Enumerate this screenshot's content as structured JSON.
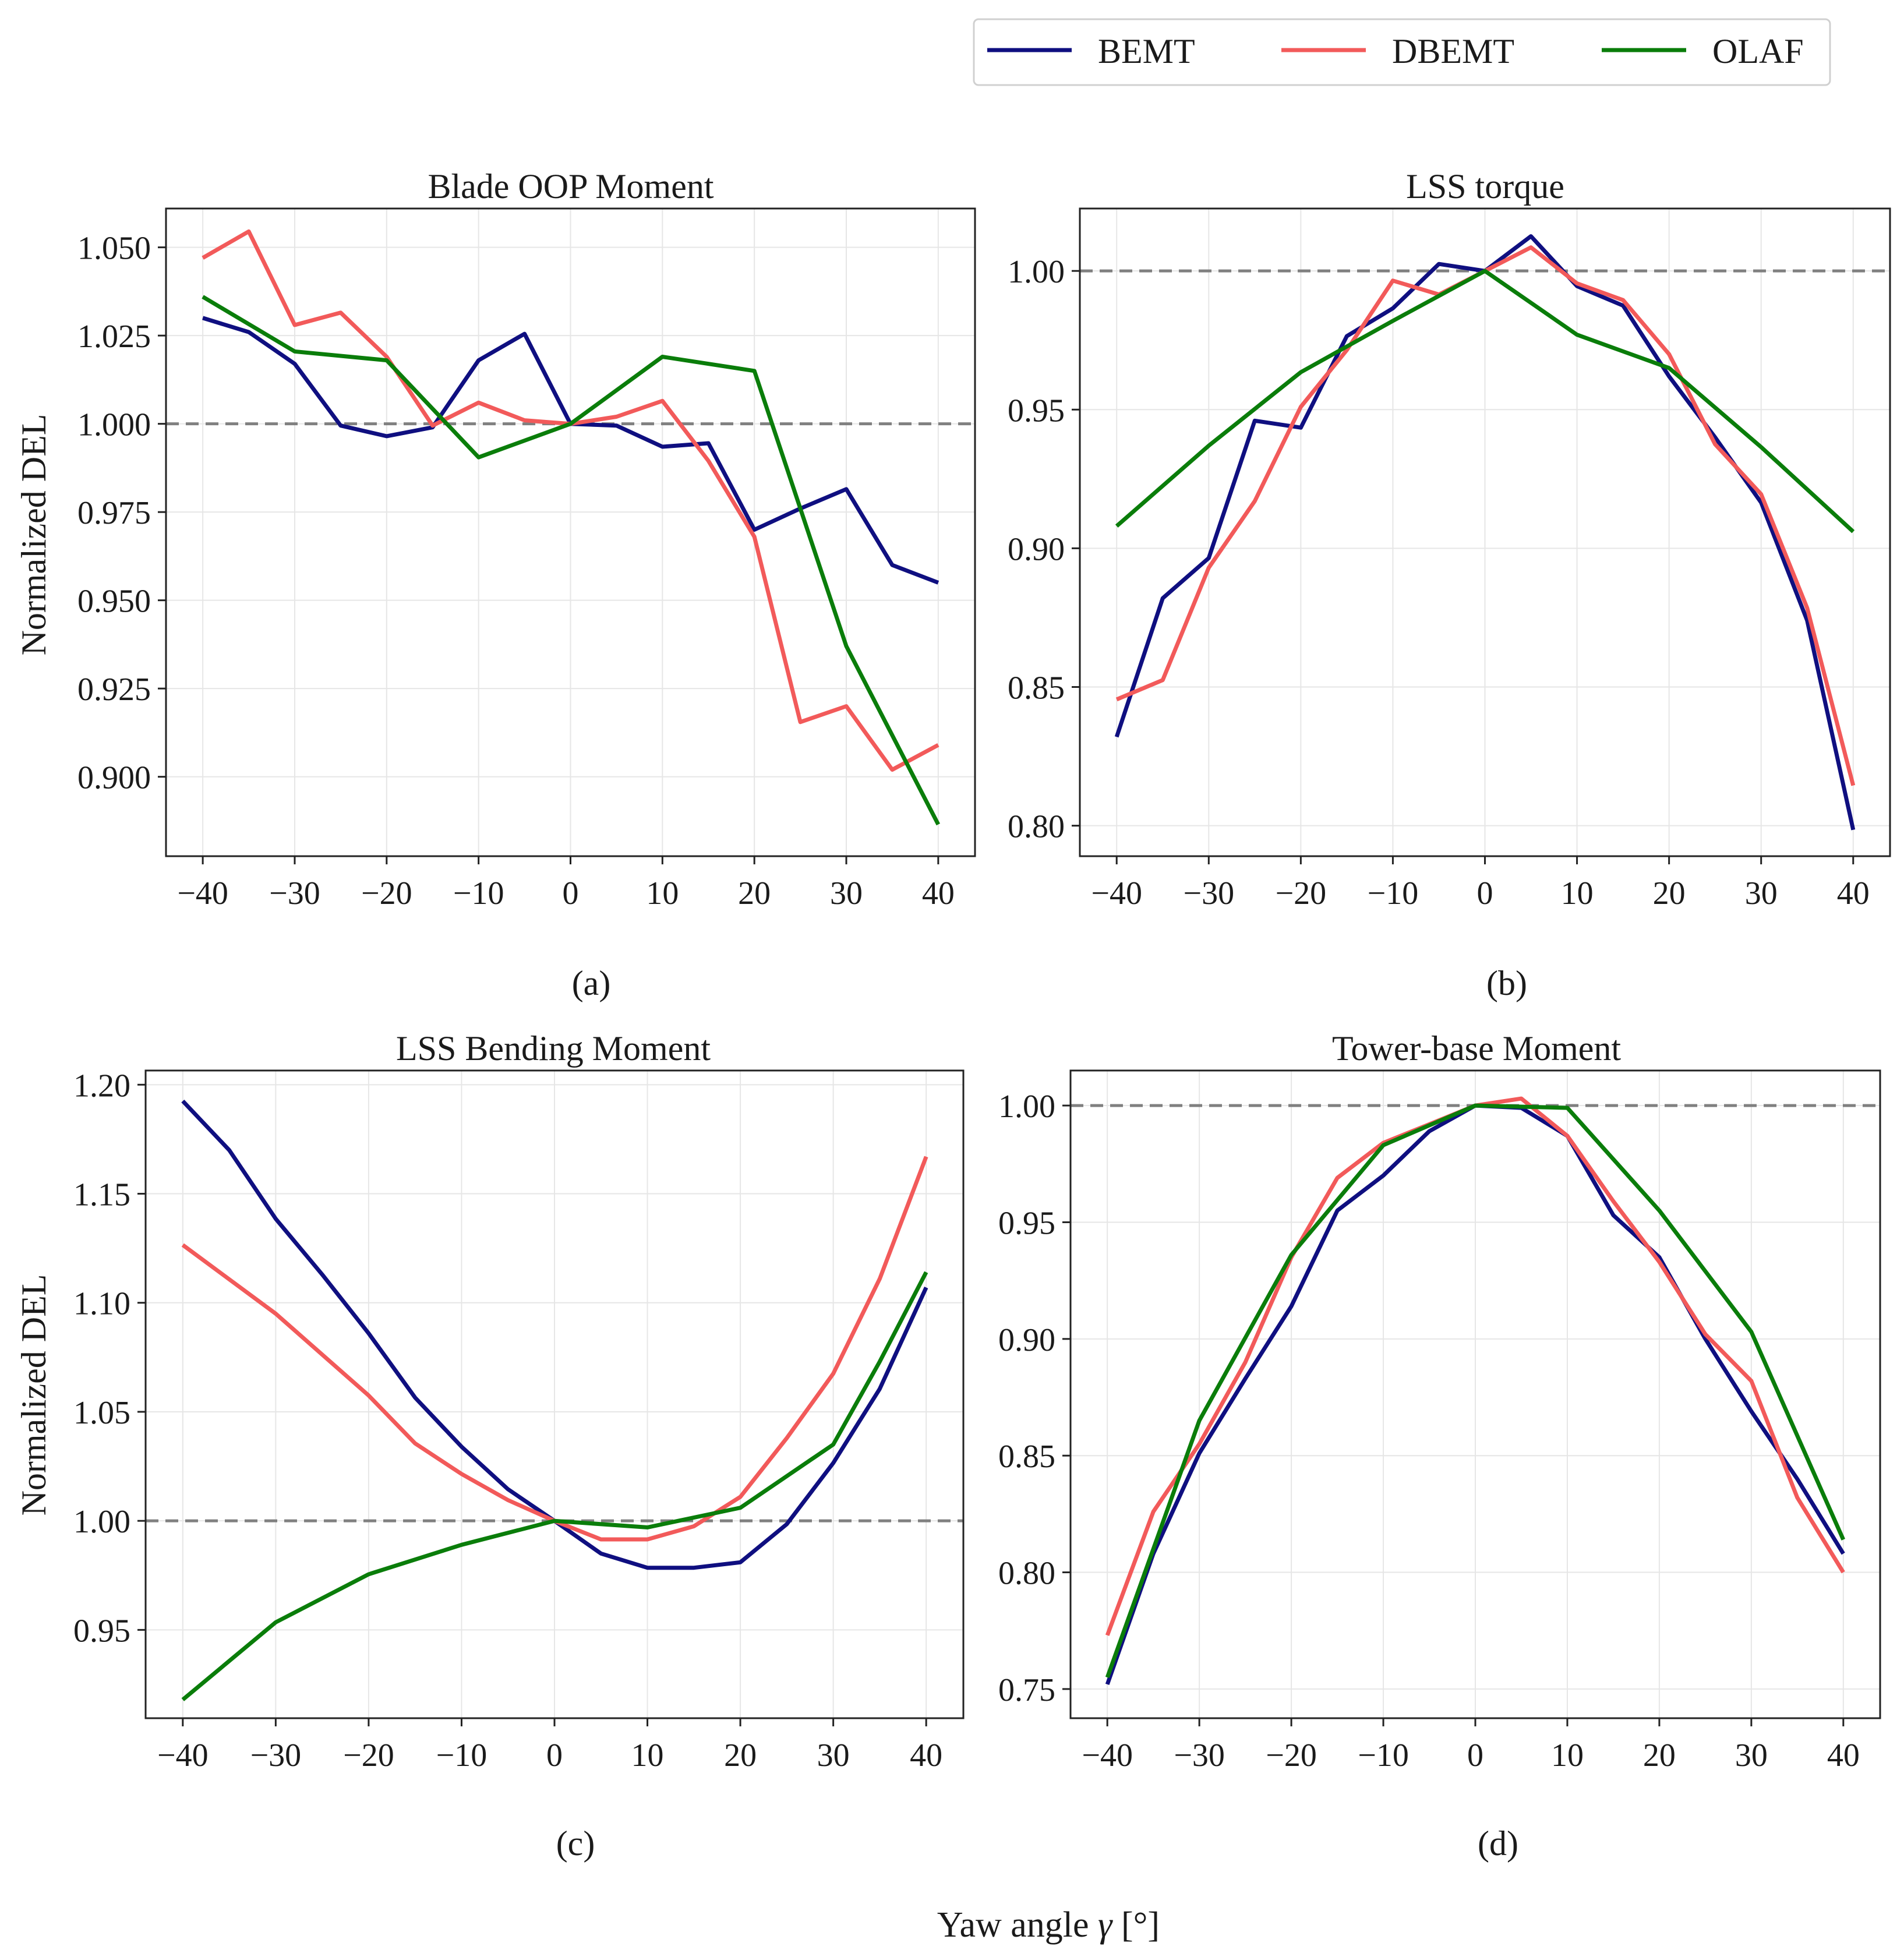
{
  "figure": {
    "xlabel_prefix": "Yaw angle ",
    "xlabel_symbol": "γ",
    "xlabel_suffix": " [°]"
  },
  "legend": {
    "items": [
      {
        "label": "BEMT",
        "color": "#0f0f80"
      },
      {
        "label": "DBEMT",
        "color": "#f25a5a"
      },
      {
        "label": "OLAF",
        "color": "#0a7d0a"
      }
    ]
  },
  "chart_data": [
    {
      "type": "line",
      "title": "Blade OOP Moment",
      "caption": "(a)",
      "xlabel": "",
      "ylabel": "Normalized DEL",
      "xlim": [
        -44,
        44
      ],
      "ylim": [
        0.8775,
        1.061
      ],
      "xticks": [
        -40,
        -30,
        -20,
        -10,
        0,
        10,
        20,
        30,
        40
      ],
      "xtick_labels": [
        "−40",
        "−30",
        "−20",
        "−10",
        "0",
        "10",
        "20",
        "30",
        "40"
      ],
      "yticks": [
        0.9,
        0.925,
        0.95,
        0.975,
        1.0,
        1.025,
        1.05
      ],
      "ytick_labels": [
        "0.900",
        "0.925",
        "0.950",
        "0.975",
        "1.000",
        "1.025",
        "1.050"
      ],
      "reference_line": 1.0,
      "series": [
        {
          "name": "BEMT",
          "x": [
            -40,
            -35,
            -30,
            -25,
            -20,
            -15,
            -10,
            -5,
            0,
            5,
            10,
            15,
            20,
            25,
            30,
            35,
            40
          ],
          "values": [
            1.03,
            1.026,
            1.017,
            0.9995,
            0.9965,
            0.999,
            1.018,
            1.0255,
            1.0,
            0.9995,
            0.9935,
            0.9945,
            0.97,
            0.976,
            0.9815,
            0.96,
            0.955
          ]
        },
        {
          "name": "DBEMT",
          "x": [
            -40,
            -35,
            -30,
            -25,
            -20,
            -15,
            -10,
            -5,
            0,
            5,
            10,
            15,
            20,
            25,
            30,
            35,
            40
          ],
          "values": [
            1.047,
            1.0545,
            1.028,
            1.0315,
            1.019,
            0.9995,
            1.006,
            1.001,
            1.0,
            1.002,
            1.0065,
            0.9895,
            0.968,
            0.9155,
            0.92,
            0.902,
            0.909
          ]
        },
        {
          "name": "OLAF",
          "x": [
            -40,
            -30,
            -20,
            -10,
            0,
            10,
            20,
            30,
            40
          ],
          "values": [
            1.036,
            1.0205,
            1.018,
            0.9905,
            1.0,
            1.019,
            1.015,
            0.937,
            0.8865
          ]
        }
      ]
    },
    {
      "type": "line",
      "title": "LSS torque",
      "caption": "(b)",
      "xlabel": "",
      "ylabel": "",
      "xlim": [
        -44,
        44
      ],
      "ylim": [
        0.789,
        1.0225
      ],
      "xticks": [
        -40,
        -30,
        -20,
        -10,
        0,
        10,
        20,
        30,
        40
      ],
      "xtick_labels": [
        "−40",
        "−30",
        "−20",
        "−10",
        "0",
        "10",
        "20",
        "30",
        "40"
      ],
      "yticks": [
        0.8,
        0.85,
        0.9,
        0.95,
        1.0
      ],
      "ytick_labels": [
        "0.80",
        "0.85",
        "0.90",
        "0.95",
        "1.00"
      ],
      "reference_line": 1.0,
      "series": [
        {
          "name": "BEMT",
          "x": [
            -40,
            -35,
            -30,
            -25,
            -20,
            -15,
            -10,
            -5,
            0,
            5,
            10,
            15,
            20,
            25,
            30,
            35,
            40
          ],
          "values": [
            0.832,
            0.882,
            0.8965,
            0.946,
            0.9435,
            0.9765,
            0.9865,
            1.0025,
            1.0,
            1.0125,
            0.9945,
            0.9875,
            0.962,
            0.94,
            0.9165,
            0.874,
            0.7985
          ]
        },
        {
          "name": "DBEMT",
          "x": [
            -40,
            -35,
            -30,
            -25,
            -20,
            -15,
            -10,
            -5,
            0,
            5,
            10,
            15,
            20,
            25,
            30,
            35,
            40
          ],
          "values": [
            0.8455,
            0.8525,
            0.893,
            0.917,
            0.951,
            0.9715,
            0.9965,
            0.9915,
            1.0,
            1.0085,
            0.9955,
            0.9895,
            0.97,
            0.9375,
            0.9195,
            0.8785,
            0.8145
          ]
        },
        {
          "name": "OLAF",
          "x": [
            -40,
            -30,
            -20,
            -10,
            0,
            10,
            20,
            30,
            40
          ],
          "values": [
            0.908,
            0.937,
            0.9635,
            0.982,
            1.0,
            0.977,
            0.965,
            0.9365,
            0.906
          ]
        }
      ]
    },
    {
      "type": "line",
      "title": "LSS Bending Moment",
      "caption": "(c)",
      "xlabel": "",
      "ylabel": "Normalized DEL",
      "xlim": [
        -44,
        44
      ],
      "ylim": [
        0.9095,
        1.2065
      ],
      "xticks": [
        -40,
        -30,
        -20,
        -10,
        0,
        10,
        20,
        30,
        40
      ],
      "xtick_labels": [
        "−40",
        "−30",
        "−20",
        "−10",
        "0",
        "10",
        "20",
        "30",
        "40"
      ],
      "yticks": [
        0.95,
        1.0,
        1.05,
        1.1,
        1.15,
        1.2
      ],
      "ytick_labels": [
        "0.95",
        "1.00",
        "1.05",
        "1.10",
        "1.15",
        "1.20"
      ],
      "reference_line": 1.0,
      "series": [
        {
          "name": "BEMT",
          "x": [
            -40,
            -35,
            -30,
            -25,
            -20,
            -15,
            -10,
            -5,
            0,
            5,
            10,
            15,
            20,
            25,
            30,
            35,
            40
          ],
          "values": [
            1.1925,
            1.17,
            1.1385,
            1.113,
            1.086,
            1.0565,
            1.034,
            1.0145,
            1.0,
            0.985,
            0.9785,
            0.9785,
            0.981,
            0.9985,
            1.0265,
            1.0605,
            1.107
          ]
        },
        {
          "name": "DBEMT",
          "x": [
            -40,
            -30,
            -20,
            -15,
            -10,
            -5,
            0,
            5,
            10,
            15,
            20,
            25,
            30,
            35,
            40
          ],
          "values": [
            1.1265,
            1.095,
            1.0575,
            1.0355,
            1.0215,
            1.0095,
            1.0,
            0.9915,
            0.9915,
            0.9975,
            1.011,
            1.038,
            1.0675,
            1.111,
            1.167
          ]
        },
        {
          "name": "OLAF",
          "x": [
            -40,
            -30,
            -20,
            -10,
            0,
            10,
            20,
            30,
            35,
            40
          ],
          "values": [
            0.918,
            0.9535,
            0.9755,
            0.989,
            1.0,
            0.997,
            1.006,
            1.035,
            1.073,
            1.114
          ]
        }
      ]
    },
    {
      "type": "line",
      "title": "Tower-base Moment",
      "caption": "(d)",
      "xlabel": "",
      "ylabel": "",
      "xlim": [
        -44,
        44
      ],
      "ylim": [
        0.7375,
        1.015
      ],
      "xticks": [
        -40,
        -30,
        -20,
        -10,
        0,
        10,
        20,
        30,
        40
      ],
      "xtick_labels": [
        "−40",
        "−30",
        "−20",
        "−10",
        "0",
        "10",
        "20",
        "30",
        "40"
      ],
      "yticks": [
        0.75,
        0.8,
        0.85,
        0.9,
        0.95,
        1.0
      ],
      "ytick_labels": [
        "0.75",
        "0.80",
        "0.85",
        "0.90",
        "0.95",
        "1.00"
      ],
      "reference_line": 1.0,
      "series": [
        {
          "name": "BEMT",
          "x": [
            -40,
            -35,
            -30,
            -25,
            -20,
            -15,
            -10,
            -5,
            0,
            5,
            10,
            15,
            20,
            25,
            30,
            35,
            40
          ],
          "values": [
            0.752,
            0.808,
            0.851,
            0.883,
            0.914,
            0.955,
            0.97,
            0.989,
            1.0,
            0.999,
            0.987,
            0.953,
            0.935,
            0.9,
            0.869,
            0.84,
            0.808
          ]
        },
        {
          "name": "DBEMT",
          "x": [
            -40,
            -35,
            -30,
            -25,
            -20,
            -15,
            -10,
            -5,
            0,
            5,
            10,
            15,
            20,
            25,
            30,
            35,
            40
          ],
          "values": [
            0.773,
            0.826,
            0.855,
            0.89,
            0.935,
            0.969,
            0.984,
            0.992,
            1.0,
            1.003,
            0.987,
            0.959,
            0.933,
            0.902,
            0.882,
            0.832,
            0.8
          ]
        },
        {
          "name": "OLAF",
          "x": [
            -40,
            -30,
            -20,
            -10,
            0,
            10,
            20,
            30,
            40
          ],
          "values": [
            0.755,
            0.865,
            0.936,
            0.983,
            1.0,
            0.999,
            0.955,
            0.903,
            0.814
          ]
        }
      ]
    }
  ]
}
